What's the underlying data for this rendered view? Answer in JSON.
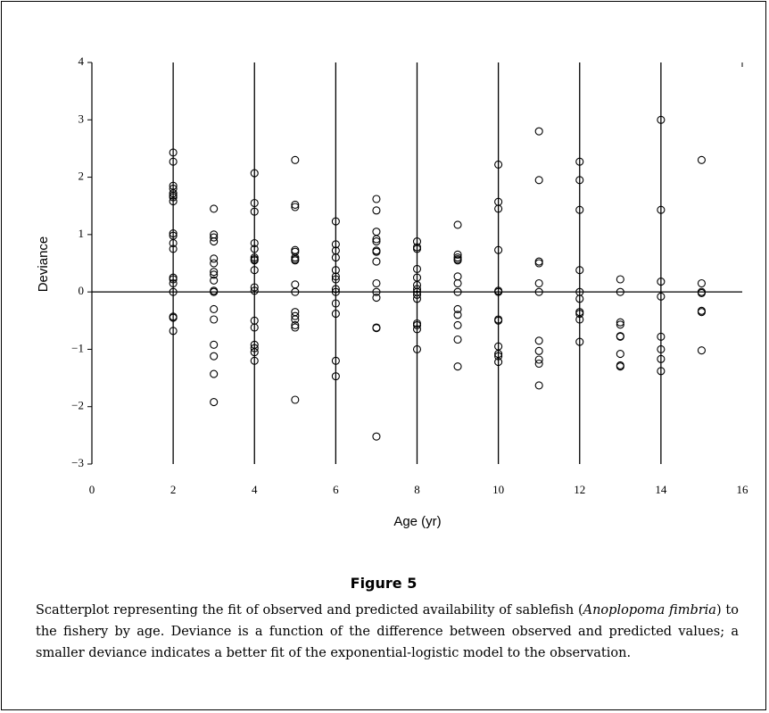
{
  "chart_data": {
    "type": "scatter",
    "xlabel": "Age (yr)",
    "ylabel": "Deviance",
    "xlim": [
      0,
      16
    ],
    "xticks": [
      0,
      2,
      4,
      6,
      8,
      10,
      12,
      14,
      16
    ],
    "ylim": [
      -3,
      4
    ],
    "yticks": [
      {
        "value": -3,
        "label": "−3"
      },
      {
        "value": -2,
        "label": "−2"
      },
      {
        "value": -1,
        "label": "−1"
      },
      0,
      1,
      2,
      3,
      4
    ],
    "grid": true,
    "hline": 0,
    "color": "#000000",
    "x": [
      2,
      2,
      2,
      2,
      2,
      2,
      2,
      2,
      2,
      2,
      2,
      2,
      2,
      2,
      2,
      2,
      2,
      2,
      2,
      3,
      3,
      3,
      3,
      3,
      3,
      3,
      3,
      3,
      3,
      3,
      3,
      3,
      3,
      3,
      3,
      3,
      4,
      4,
      4,
      4,
      4,
      4,
      4,
      4,
      4,
      4,
      4,
      4,
      4,
      4,
      4,
      4,
      4,
      5,
      5,
      5,
      5,
      5,
      5,
      5,
      5,
      5,
      5,
      5,
      5,
      5,
      5,
      5,
      5,
      6,
      6,
      6,
      6,
      6,
      6,
      6,
      6,
      6,
      6,
      6,
      6,
      6,
      7,
      7,
      7,
      7,
      7,
      7,
      7,
      7,
      7,
      7,
      7,
      7,
      7,
      7,
      8,
      8,
      8,
      8,
      8,
      8,
      8,
      8,
      8,
      8,
      8,
      8,
      8,
      8,
      9,
      9,
      9,
      9,
      9,
      9,
      9,
      9,
      9,
      9,
      9,
      9,
      9,
      10,
      10,
      10,
      10,
      10,
      10,
      10,
      10,
      10,
      10,
      10,
      10,
      11,
      11,
      11,
      11,
      11,
      11,
      11,
      11,
      11,
      11,
      11,
      12,
      12,
      12,
      12,
      12,
      12,
      12,
      12,
      12,
      12,
      13,
      13,
      13,
      13,
      13,
      13,
      13,
      13,
      13,
      14,
      14,
      14,
      14,
      14,
      14,
      14,
      14,
      15,
      15,
      15,
      15,
      15,
      15,
      15
    ],
    "y": [
      2.43,
      2.27,
      1.85,
      1.8,
      1.72,
      1.68,
      1.65,
      1.58,
      1.02,
      0.98,
      0.85,
      0.75,
      0.25,
      0.22,
      0.15,
      0,
      -0.43,
      -0.45,
      -0.68,
      1.45,
      1,
      0.95,
      0.88,
      0.58,
      0.5,
      0.35,
      0.3,
      0.2,
      0.02,
      0,
      -0.3,
      -0.48,
      -0.92,
      -1.12,
      -1.43,
      -1.92,
      2.07,
      1.55,
      1.4,
      0.85,
      0.75,
      0.6,
      0.57,
      0.55,
      0.38,
      0.08,
      0.02,
      -0.5,
      -0.62,
      -0.92,
      -0.98,
      -1.05,
      -1.2,
      2.3,
      1.52,
      1.48,
      0.73,
      0.7,
      0.6,
      0.57,
      0.55,
      0.13,
      0,
      -0.35,
      -0.42,
      -0.48,
      -0.58,
      -0.62,
      -1.88,
      1.23,
      0.83,
      0.72,
      0.6,
      0.38,
      0.27,
      0.22,
      0.05,
      0,
      -0.2,
      -0.38,
      -1.2,
      -1.47,
      1.62,
      1.42,
      1.05,
      0.92,
      0.88,
      0.72,
      0.7,
      0.53,
      0.15,
      0,
      -0.1,
      -0.62,
      -0.63,
      -2.52,
      0.88,
      0.78,
      0.75,
      0.4,
      0.25,
      0.12,
      0.05,
      0,
      -0.05,
      -0.12,
      -0.55,
      -0.58,
      -0.65,
      -1,
      1.17,
      0.65,
      0.6,
      0.57,
      0.55,
      0.27,
      0.15,
      0,
      -0.3,
      -0.4,
      -0.58,
      -0.83,
      -1.3,
      2.22,
      1.57,
      1.45,
      0.73,
      0.02,
      0,
      -0.48,
      -0.5,
      -0.95,
      -1.08,
      -1.12,
      -1.22,
      2.8,
      1.95,
      0.53,
      0.5,
      0.15,
      0,
      -0.85,
      -1.03,
      -1.18,
      -1.25,
      -1.63,
      2.27,
      1.95,
      1.43,
      0.38,
      0,
      -0.12,
      -0.35,
      -0.38,
      -0.48,
      -0.87,
      0.22,
      0,
      -0.53,
      -0.57,
      -0.77,
      -0.78,
      -1.08,
      -1.28,
      -1.3,
      3,
      1.43,
      0.18,
      -0.08,
      -0.78,
      -1,
      -1.17,
      -1.38,
      2.3,
      0.15,
      0,
      -0.02,
      -0.33,
      -0.35,
      -1.02
    ]
  },
  "figure": {
    "label": "Figure 5",
    "caption_before": "Scatterplot representing the fit of observed and predicted availability of sablefish (",
    "caption_italic": "Anoplopoma fimbria",
    "caption_after": ") to the fishery by age. Deviance is a function of the difference between observed and predicted values; a smaller deviance indicates a better fit of the exponential-logistic model to the observation."
  }
}
